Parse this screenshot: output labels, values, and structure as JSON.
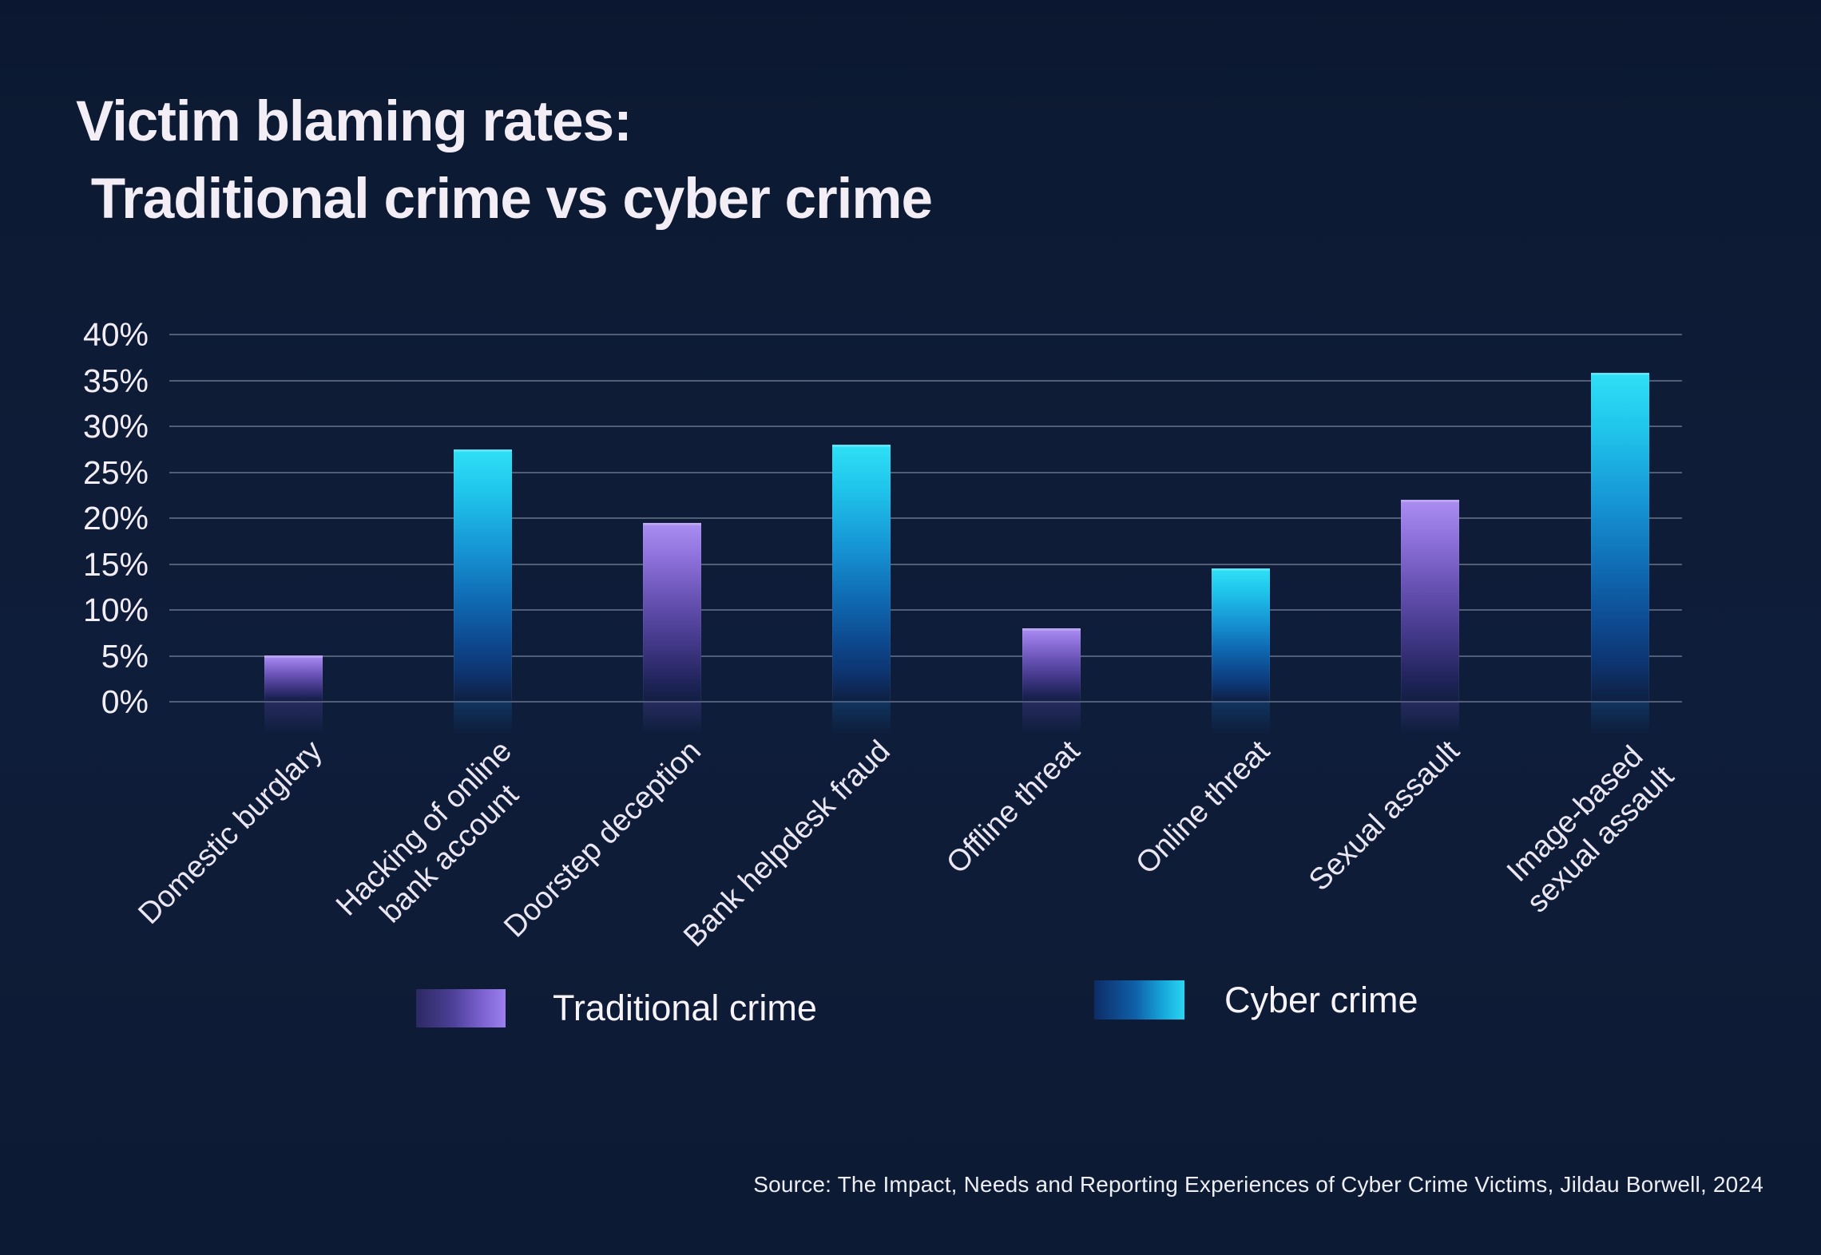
{
  "title": {
    "line1": "Victim blaming rates:",
    "line2": " Traditional crime vs cyber crime"
  },
  "chart_data": {
    "type": "bar",
    "title": "Victim blaming rates: Traditional crime vs cyber crime",
    "xlabel": "",
    "ylabel": "",
    "ylim": [
      0,
      40
    ],
    "grid": true,
    "legend_position": "bottom",
    "y_ticks_top_to_bottom": [
      "40%",
      "35%",
      "30%",
      "25%",
      "20%",
      "15%",
      "10%",
      "5%",
      "0%"
    ],
    "categories": [
      "Domestic burglary",
      "Hacking of online\nbank account",
      "Doorstep deception",
      "Bank helpdesk fraud",
      "Offline threat",
      "Online threat",
      "Sexual assault",
      "Image-based\nsexual assault"
    ],
    "bars": [
      {
        "category": "Domestic burglary",
        "series": "Traditional crime",
        "value": 5
      },
      {
        "category": "Hacking of online\nbank account",
        "series": "Cyber crime",
        "value": 27.5
      },
      {
        "category": "Doorstep deception",
        "series": "Traditional crime",
        "value": 19.5
      },
      {
        "category": "Bank helpdesk fraud",
        "series": "Cyber crime",
        "value": 28
      },
      {
        "category": "Offline threat",
        "series": "Traditional crime",
        "value": 8
      },
      {
        "category": "Online threat",
        "series": "Cyber crime",
        "value": 14.5
      },
      {
        "category": "Sexual assault",
        "series": "Traditional crime",
        "value": 22
      },
      {
        "category": "Image-based\nsexual assault",
        "series": "Cyber crime",
        "value": 35.8
      }
    ],
    "series": [
      {
        "name": "Traditional crime",
        "color_top": "#ab8ef2",
        "color_bottom": "#1e2358"
      },
      {
        "name": "Cyber crime",
        "color_top": "#2fe0f6",
        "color_bottom": "#0d3572"
      }
    ]
  },
  "legend": {
    "items": [
      {
        "label": "Traditional crime"
      },
      {
        "label": "Cyber crime"
      }
    ]
  },
  "source": {
    "text": "Source: The Impact, Needs and Reporting Experiences of Cyber Crime Victims, Jildau Borwell, 2024"
  },
  "colors": {
    "background": "#0d1a33",
    "gridline": "#aab4cc",
    "text": "#f3eef6",
    "traditional_accent": "#9d7ff0",
    "cyber_accent": "#2bd5f2"
  }
}
